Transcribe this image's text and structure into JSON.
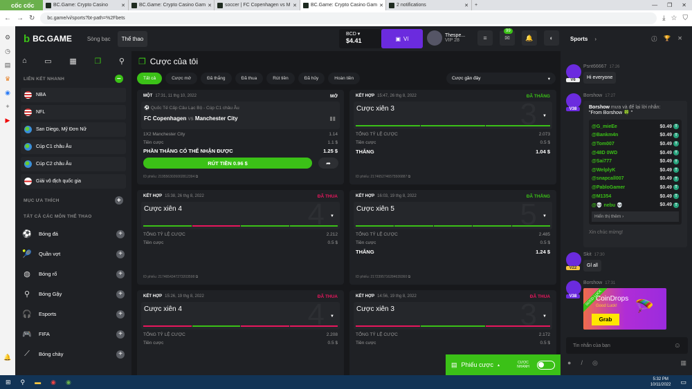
{
  "browser": {
    "brand": "cốc cốc",
    "tabs": [
      {
        "title": "BC.Game: Crypto Casino",
        "active": false
      },
      {
        "title": "BC.Game: Crypto Casino Gam",
        "active": false
      },
      {
        "title": "soccer | FC Copenhagen vs M",
        "active": false
      },
      {
        "title": "BC.Game: Crypto Casino Gam",
        "active": true
      },
      {
        "title": "2 notifications",
        "active": false
      }
    ],
    "url": "bc.game/vi/sports?bt-path=%2Fbets"
  },
  "header": {
    "logo": "BC.GAME",
    "nav": [
      "Sòng bạc",
      "Thể thao"
    ],
    "currency": "BCD",
    "balance": "$4.41",
    "wallet_label": "Ví",
    "username": "Thespe...",
    "vip": "VIP 28",
    "notif_count": "99"
  },
  "sidebar": {
    "quick_title": "LIÊN KẾT NHANH",
    "quick_links": [
      {
        "label": "NBA",
        "flag": "us"
      },
      {
        "label": "NFL",
        "flag": "us"
      },
      {
        "label": "San Diego, Mỹ Đơn Nữ",
        "flag": "world"
      },
      {
        "label": "Cúp C1 châu Âu",
        "flag": "world"
      },
      {
        "label": "Cúp C2 châu Âu",
        "flag": "world"
      },
      {
        "label": "Giải vô địch quốc gia",
        "flag": "england"
      }
    ],
    "fav_title": "MỤC ƯA THÍCH",
    "all_title": "TẤT CẢ CÁC MÔN THỂ THAO",
    "sports": [
      {
        "label": "Bóng đá",
        "icon": "soccer-ball-icon"
      },
      {
        "label": "Quần vợt",
        "icon": "tennis-icon"
      },
      {
        "label": "Bóng rổ",
        "icon": "basketball-icon"
      },
      {
        "label": "Bóng Gậy",
        "icon": "cricket-icon"
      },
      {
        "label": "Esports",
        "icon": "headset-icon"
      },
      {
        "label": "FIFA",
        "icon": "fifa-icon"
      },
      {
        "label": "Bóng chày",
        "icon": "baseball-bat-icon"
      }
    ]
  },
  "main": {
    "title": "Cược của tôi",
    "filters": [
      "Tất cả",
      "Cược mở",
      "Đã thắng",
      "Đã thua",
      "Rút tiền",
      "Đã hủy",
      "Hoàn tiền"
    ],
    "active_filter": "Tất cả",
    "sort": "Cược gần đây",
    "single": {
      "type": "MỘT",
      "time": "17:31, 11 thg 10, 2022",
      "status": "MỞ",
      "league": "Quốc Tế Cấp Câu Lạc Bộ - Cúp C1 châu Âu",
      "home": "FC Copenhagen",
      "vs": "vs",
      "away": "Manchester City",
      "selection": "1X2 Manchester City",
      "odds": "1.14",
      "stake_label": "Tiền cược",
      "stake": "1.1 $",
      "potential_label": "PHẦN THẮNG CÓ THỂ NHẬN ĐƯỢC",
      "potential": "1.25 $",
      "cashout": "RÚT TIỀN 0.96 $",
      "ticket_label": "ID phiếu:",
      "ticket": "2195563026002812394"
    },
    "parlays": [
      {
        "type": "KẾT HỢP",
        "time": "15:47, 26 thg 8, 2022",
        "status": "ĐÃ THẮNG",
        "won": true,
        "title": "Cược xiên 3",
        "n": "3",
        "legs": [
          "win",
          "win",
          "win"
        ],
        "odds_label": "TỔNG TỶ LỆ CƯỢC",
        "odds": "2.073",
        "stake_label": "Tiền cược",
        "stake": "0.5 $",
        "win_label": "THẮNG",
        "win": "1.04 $",
        "ticket_label": "ID phiếu:",
        "ticket": "2174652746575506887"
      },
      {
        "type": "KẾT HỢP",
        "time": "15:38, 26 thg 8, 2022",
        "status": "ĐÃ THUA",
        "won": false,
        "title": "Cược xiên 4",
        "n": "4",
        "legs": [
          "win",
          "loss",
          "win",
          "win"
        ],
        "odds_label": "TỔNG TỶ LỆ CƯỢC",
        "odds": "2.212",
        "stake_label": "Tiền cược",
        "stake": "0.5 $",
        "ticket_label": "ID phiếu:",
        "ticket": "2174654347273203598"
      },
      {
        "type": "KẾT HỢP",
        "time": "16:03, 19 thg 8, 2022",
        "status": "ĐÃ THẮNG",
        "won": true,
        "title": "Cược xiên 5",
        "n": "5",
        "legs": [
          "win",
          "win",
          "win",
          "win",
          "win"
        ],
        "odds_label": "TỔNG TỶ LỆ CƯỢC",
        "odds": "2.485",
        "stake_label": "Tiền cược",
        "stake": "0.5 $",
        "win_label": "THẮNG",
        "win": "1.24 $",
        "ticket_label": "ID phiếu:",
        "ticket": "2172395716284639360"
      },
      {
        "type": "KẾT HỢP",
        "time": "15:26, 19 thg 8, 2022",
        "status": "ĐÃ THUA",
        "won": false,
        "title": "Cược xiên 4",
        "n": "4",
        "legs": [
          "loss",
          "win",
          "loss",
          "loss"
        ],
        "odds_label": "TỔNG TỶ LỆ CƯỢC",
        "odds": "2.208",
        "stake_label": "Tiền cược",
        "stake": "0.5 $"
      },
      {
        "type": "KẾT HỢP",
        "time": "14:56, 19 thg 8, 2022",
        "status": "ĐÃ THUA",
        "won": false,
        "title": "Cược xiên 3",
        "n": "3",
        "legs": [
          "loss",
          "win",
          "loss"
        ],
        "odds_label": "TỔNG TỶ LỆ CƯỢC",
        "odds": "2.172",
        "stake_label": "Tiền cược",
        "stake": "0.5 $"
      }
    ],
    "slip_label": "Phiếu cược",
    "quick_bet_label": "CƯỢC NHANH"
  },
  "colors": {
    "accent": "#3bc117",
    "loss": "#e8175d",
    "purple": "#6b2bde"
  },
  "chat": {
    "title": "Sports",
    "msgs": [
      {
        "user": "Psnt66667",
        "time": "17:26",
        "level": "V6",
        "text": "Hi everyone"
      },
      {
        "user": "Skit",
        "time": "17:30",
        "level": "V22",
        "text": "Gl all"
      }
    ],
    "tip": {
      "user": "Borshow",
      "time": "17:27",
      "level": "V38",
      "sender": "Borshow",
      "action": "mưa và để lại lời nhắn:",
      "note": "\"From Borshow 🍀 \"",
      "recipients": [
        [
          "@G_mieEe",
          "$0.49"
        ],
        [
          "@Bankm4n",
          "$0.49"
        ],
        [
          "@Tom007",
          "$0.49"
        ],
        [
          "@48D 0WD",
          "$0.49"
        ],
        [
          "@Sai777",
          "$0.49"
        ],
        [
          "@WelplyK",
          "$0.49"
        ],
        [
          "@snapcall007",
          "$0.49"
        ],
        [
          "@PabloGamer",
          "$0.49"
        ],
        [
          "@M1354",
          "$0.49"
        ],
        [
          "@💀 nebu 💀",
          "$0.49"
        ]
      ],
      "more": "Hiển thị thêm ›",
      "footer": "Xin chúc mừng!"
    },
    "promo": {
      "user": "Borshow",
      "time": "17:31",
      "level": "V38",
      "ribbon": "GOOD LUCK",
      "title": "CoinDrops",
      "subtitle": "Good Luck!",
      "button": "Grab"
    },
    "input_placeholder": "Tin nhắn của bạn"
  },
  "taskbar": {
    "time": "5:32 PM",
    "date": "10/11/2022"
  }
}
